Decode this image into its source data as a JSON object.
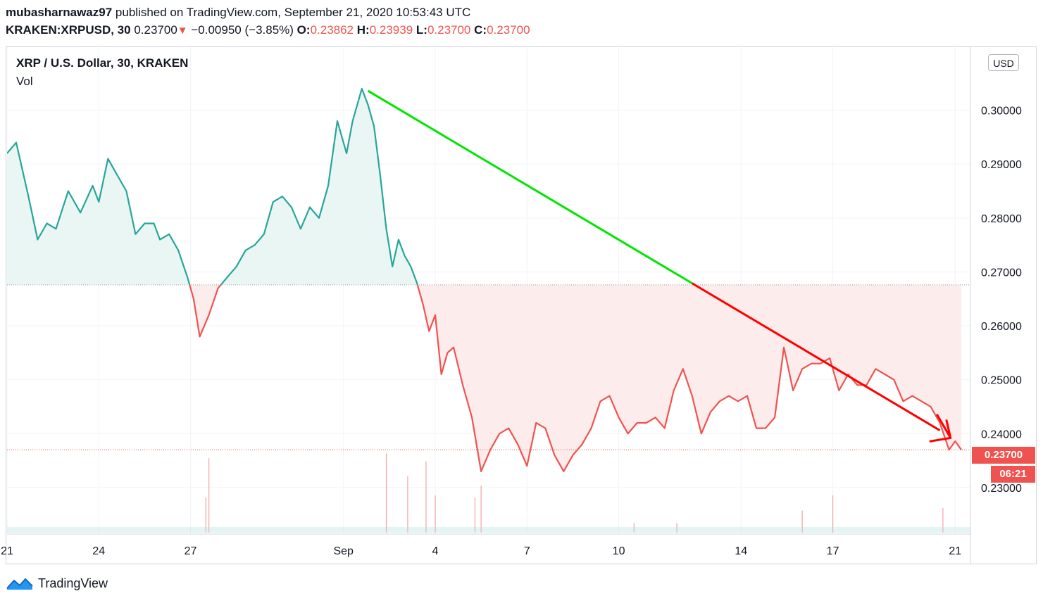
{
  "header": {
    "author": "mubasharnawaz97",
    "published": "published on TradingView.com, September 21, 2020 10:53:43 UTC",
    "symbol": "KRAKEN:XRPUSD, 30",
    "price": "0.23700",
    "arrow": "▼",
    "change": "−0.00950 (−3.85%)",
    "o_label": "O:",
    "o": "0.23862",
    "h_label": "H:",
    "h": "0.23939",
    "l_label": "L:",
    "l": "0.23700",
    "c_label": "C:",
    "c": "0.23700"
  },
  "legend": {
    "title": "XRP / U.S. Dollar, 30, KRAKEN",
    "vol": "Vol"
  },
  "currency_button": "USD",
  "price_tag": "0.23700",
  "countdown_tag": "06:21",
  "footer": {
    "brand": "TradingView",
    "logo_icon": "tradingview-logo-icon"
  },
  "colors": {
    "up_line": "#26a69a",
    "down_line": "#ef5350",
    "up_fill": "#e9f6f4",
    "down_fill": "#fdecec",
    "trend_green": "#00e600",
    "trend_red": "#ff0000",
    "grid": "#f0f3fa"
  },
  "chart_data": {
    "type": "area",
    "baseline": 0.2676,
    "last_price": 0.237,
    "ylim": [
      0.2215,
      0.3117
    ],
    "y_ticks": [
      "0.23000",
      "0.24000",
      "0.25000",
      "0.26000",
      "0.27000",
      "0.28000",
      "0.29000",
      "0.30000"
    ],
    "x_ticks": [
      "21",
      "24",
      "27",
      "Sep",
      "4",
      "7",
      "10",
      "14",
      "17",
      "21"
    ],
    "x_tick_days": [
      0,
      3,
      6,
      11,
      14,
      17,
      20,
      24,
      27,
      31
    ],
    "xlim": [
      0,
      31.5
    ],
    "series": [
      {
        "x": [
          0,
          0.3,
          0.7,
          1.0,
          1.3,
          1.6,
          2.0,
          2.4,
          2.8,
          3.0,
          3.3,
          3.6,
          3.9,
          4.2,
          4.5,
          4.8,
          5.0,
          5.3,
          5.6,
          5.9,
          6.1,
          6.3,
          6.6,
          6.9,
          7.2,
          7.5,
          7.8,
          8.1,
          8.4,
          8.7,
          9.0,
          9.3,
          9.6,
          9.9,
          10.2,
          10.5,
          10.8,
          11.1,
          11.3,
          11.6,
          11.8,
          12.0,
          12.2,
          12.4,
          12.6,
          12.8,
          13.0,
          13.2,
          13.4,
          13.6,
          13.8,
          14.0,
          14.2,
          14.4,
          14.6,
          14.9,
          15.2,
          15.5,
          15.8,
          16.1,
          16.4,
          16.7,
          17.0,
          17.3,
          17.6,
          17.9,
          18.2,
          18.5,
          18.8,
          19.1,
          19.4,
          19.7,
          20.0,
          20.3,
          20.6,
          20.9,
          21.2,
          21.5,
          21.8,
          22.1,
          22.4,
          22.7,
          23.0,
          23.3,
          23.6,
          23.9,
          24.2,
          24.5,
          24.8,
          25.1,
          25.4,
          25.7,
          26.0,
          26.3,
          26.6,
          26.9,
          27.2,
          27.5,
          27.8,
          28.1,
          28.4,
          28.7,
          29.0,
          29.3,
          29.6,
          29.9,
          30.2,
          30.5,
          30.8,
          31.0,
          31.2
        ],
        "values": [
          0.292,
          0.294,
          0.284,
          0.276,
          0.279,
          0.278,
          0.285,
          0.281,
          0.286,
          0.283,
          0.291,
          0.288,
          0.285,
          0.277,
          0.279,
          0.279,
          0.276,
          0.277,
          0.274,
          0.269,
          0.265,
          0.258,
          0.262,
          0.267,
          0.269,
          0.271,
          0.274,
          0.275,
          0.277,
          0.283,
          0.284,
          0.282,
          0.278,
          0.282,
          0.28,
          0.286,
          0.298,
          0.292,
          0.298,
          0.304,
          0.301,
          0.297,
          0.288,
          0.278,
          0.271,
          0.276,
          0.273,
          0.271,
          0.268,
          0.264,
          0.259,
          0.262,
          0.251,
          0.255,
          0.256,
          0.249,
          0.243,
          0.233,
          0.237,
          0.24,
          0.241,
          0.238,
          0.234,
          0.242,
          0.241,
          0.236,
          0.233,
          0.236,
          0.238,
          0.241,
          0.246,
          0.247,
          0.243,
          0.24,
          0.242,
          0.242,
          0.243,
          0.241,
          0.248,
          0.252,
          0.247,
          0.24,
          0.244,
          0.246,
          0.247,
          0.246,
          0.247,
          0.241,
          0.241,
          0.243,
          0.256,
          0.248,
          0.252,
          0.253,
          0.253,
          0.254,
          0.248,
          0.251,
          0.249,
          0.249,
          0.252,
          0.251,
          0.25,
          0.246,
          0.247,
          0.246,
          0.245,
          0.242,
          0.237,
          0.2386,
          0.237
        ]
      }
    ],
    "trendline": {
      "from": [
        11.8,
        0.3036
      ],
      "to": [
        30.5,
        0.2406
      ],
      "color_change_day": 22.4
    },
    "arrow_annotation": {
      "from": [
        30.4,
        0.2436
      ],
      "to": [
        30.85,
        0.2392
      ]
    },
    "volume": {
      "spikes": [
        [
          6.6,
          0.0138
        ],
        [
          6.5,
          0.0065
        ],
        [
          12.4,
          0.0147
        ],
        [
          13.1,
          0.0105
        ],
        [
          13.7,
          0.0132
        ],
        [
          14.0,
          0.0069
        ],
        [
          15.5,
          0.0087
        ],
        [
          15.3,
          0.0065
        ],
        [
          20.5,
          0.0018
        ],
        [
          21.9,
          0.0018
        ],
        [
          26.0,
          0.0041
        ],
        [
          27.0,
          0.0069
        ],
        [
          30.6,
          0.0046
        ]
      ]
    }
  }
}
